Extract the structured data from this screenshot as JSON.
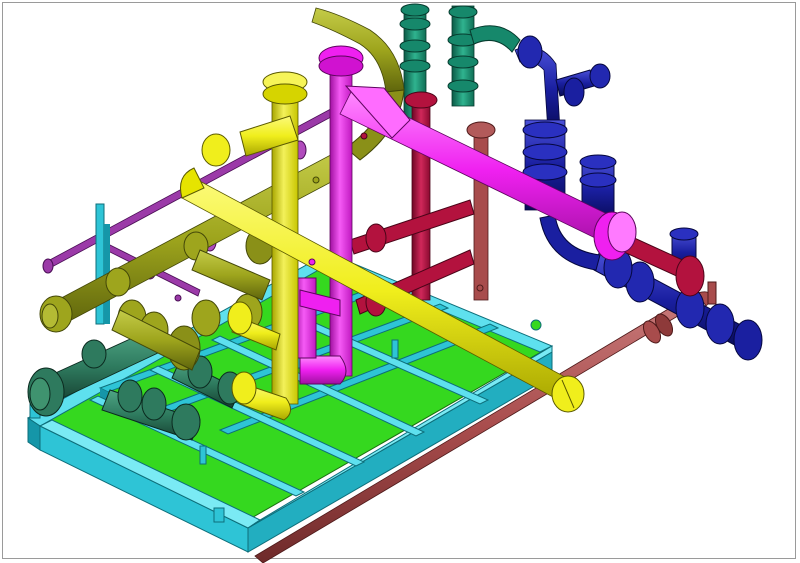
{
  "scene": {
    "background": "#ffffff",
    "frame_color": "#9a9a9a",
    "palette": {
      "skid_frame": "#2ec4d6",
      "skid_frame_dark": "#1596a8",
      "deck": "#35d81f",
      "deck_dark": "#22a814",
      "yellow_pipe": "#f0ee1c",
      "yellow_pipe_dark": "#b8b600",
      "olive_pipe": "#9ea51d",
      "olive_pipe_dark": "#6c7210",
      "magenta_pipe": "#ef20f0",
      "magenta_pipe_dark": "#a810a8",
      "crimson_pipe": "#b3123e",
      "crimson_pipe_dark": "#7a0828",
      "brown_pipe": "#a84c4c",
      "brown_pipe_dark": "#6e2a2a",
      "teal_pipe": "#16886b",
      "teal_pipe_dark": "#0b5a46",
      "navy_pipe": "#1a1fa0",
      "navy_pipe_dark": "#0b0e68",
      "purple_pipe": "#9b3aa8",
      "purple_pipe_dark": "#6a1f78",
      "dark_green_pipe": "#2e7a5e",
      "dark_green_pipe_dark": "#1a4f3c"
    },
    "components": [
      "skid-base-frame",
      "deck-plate",
      "yellow-header-pipe",
      "olive-manifold",
      "magenta-line",
      "crimson-line",
      "brown-line",
      "teal-riser",
      "navy-line",
      "purple-small-bore",
      "dark-green-manifold"
    ]
  }
}
